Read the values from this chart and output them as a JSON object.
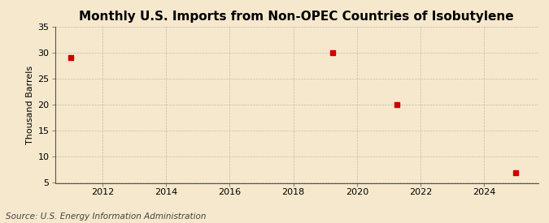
{
  "title": "Monthly U.S. Imports from Non-OPEC Countries of Isobutylene",
  "ylabel": "Thousand Barrels",
  "source": "Source: U.S. Energy Information Administration",
  "background_color": "#f5e8cc",
  "plot_bg_color": "#f5e8cc",
  "data_x": [
    2011.0,
    2019.25,
    2021.25,
    2025.0
  ],
  "data_y": [
    29,
    30,
    20,
    7
  ],
  "marker_color": "#cc0000",
  "marker_size": 4,
  "xlim": [
    2010.5,
    2025.7
  ],
  "ylim": [
    5,
    35
  ],
  "xticks": [
    2012,
    2014,
    2016,
    2018,
    2020,
    2022,
    2024
  ],
  "yticks": [
    5,
    10,
    15,
    20,
    25,
    30,
    35
  ],
  "grid_color": "#aaaaaa",
  "title_fontsize": 11,
  "axis_label_fontsize": 8,
  "tick_fontsize": 8,
  "source_fontsize": 7.5
}
